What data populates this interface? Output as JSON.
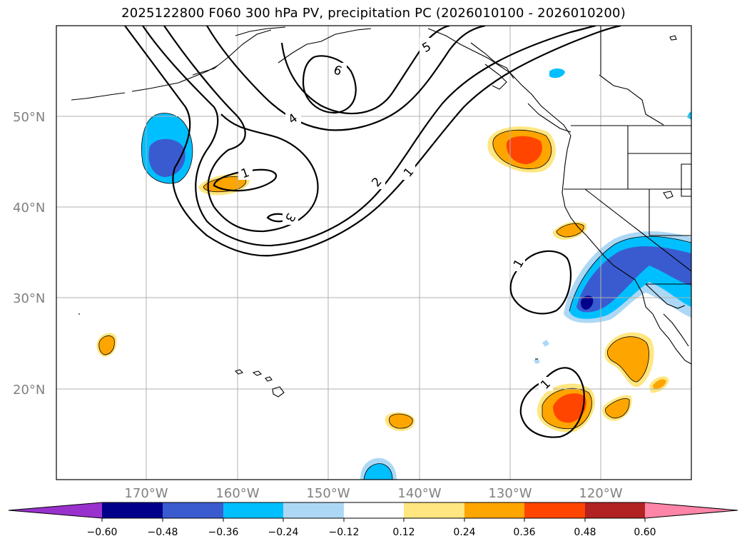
{
  "title": "2025122800 F060 300 hPa PV, precipitation PC (2026010100 - 2026010200)",
  "lat_labels": [
    "50°N",
    "40°N",
    "30°N",
    "20°N"
  ],
  "lon_labels": [
    "170°W",
    "160°W",
    "150°W",
    "140°W",
    "130°W",
    "120°W"
  ],
  "pv_contour_labels": [
    "6",
    "5",
    "4",
    "3",
    "2",
    "1",
    "1",
    "1",
    "1"
  ],
  "colorbar": {
    "ticks": [
      "−0.60",
      "−0.48",
      "−0.36",
      "−0.24",
      "−0.12",
      "0.12",
      "0.24",
      "0.36",
      "0.48",
      "0.60"
    ],
    "colors": [
      "#9932cc",
      "#00008b",
      "#3a5bcf",
      "#00bfff",
      "#add8f5",
      "#ffffff",
      "#ffe680",
      "#ffa500",
      "#ff4500",
      "#b22222",
      "#ff85a8"
    ]
  },
  "colors": {
    "neg_strong": "#00008b",
    "neg_mid": "#3a5bcf",
    "neg_weak": "#00bfff",
    "neg_light": "#add8f5",
    "pos_light": "#ffe680",
    "pos_mid": "#ffa500",
    "pos_strong": "#ff4500",
    "grid": "#b0b0b0"
  }
}
